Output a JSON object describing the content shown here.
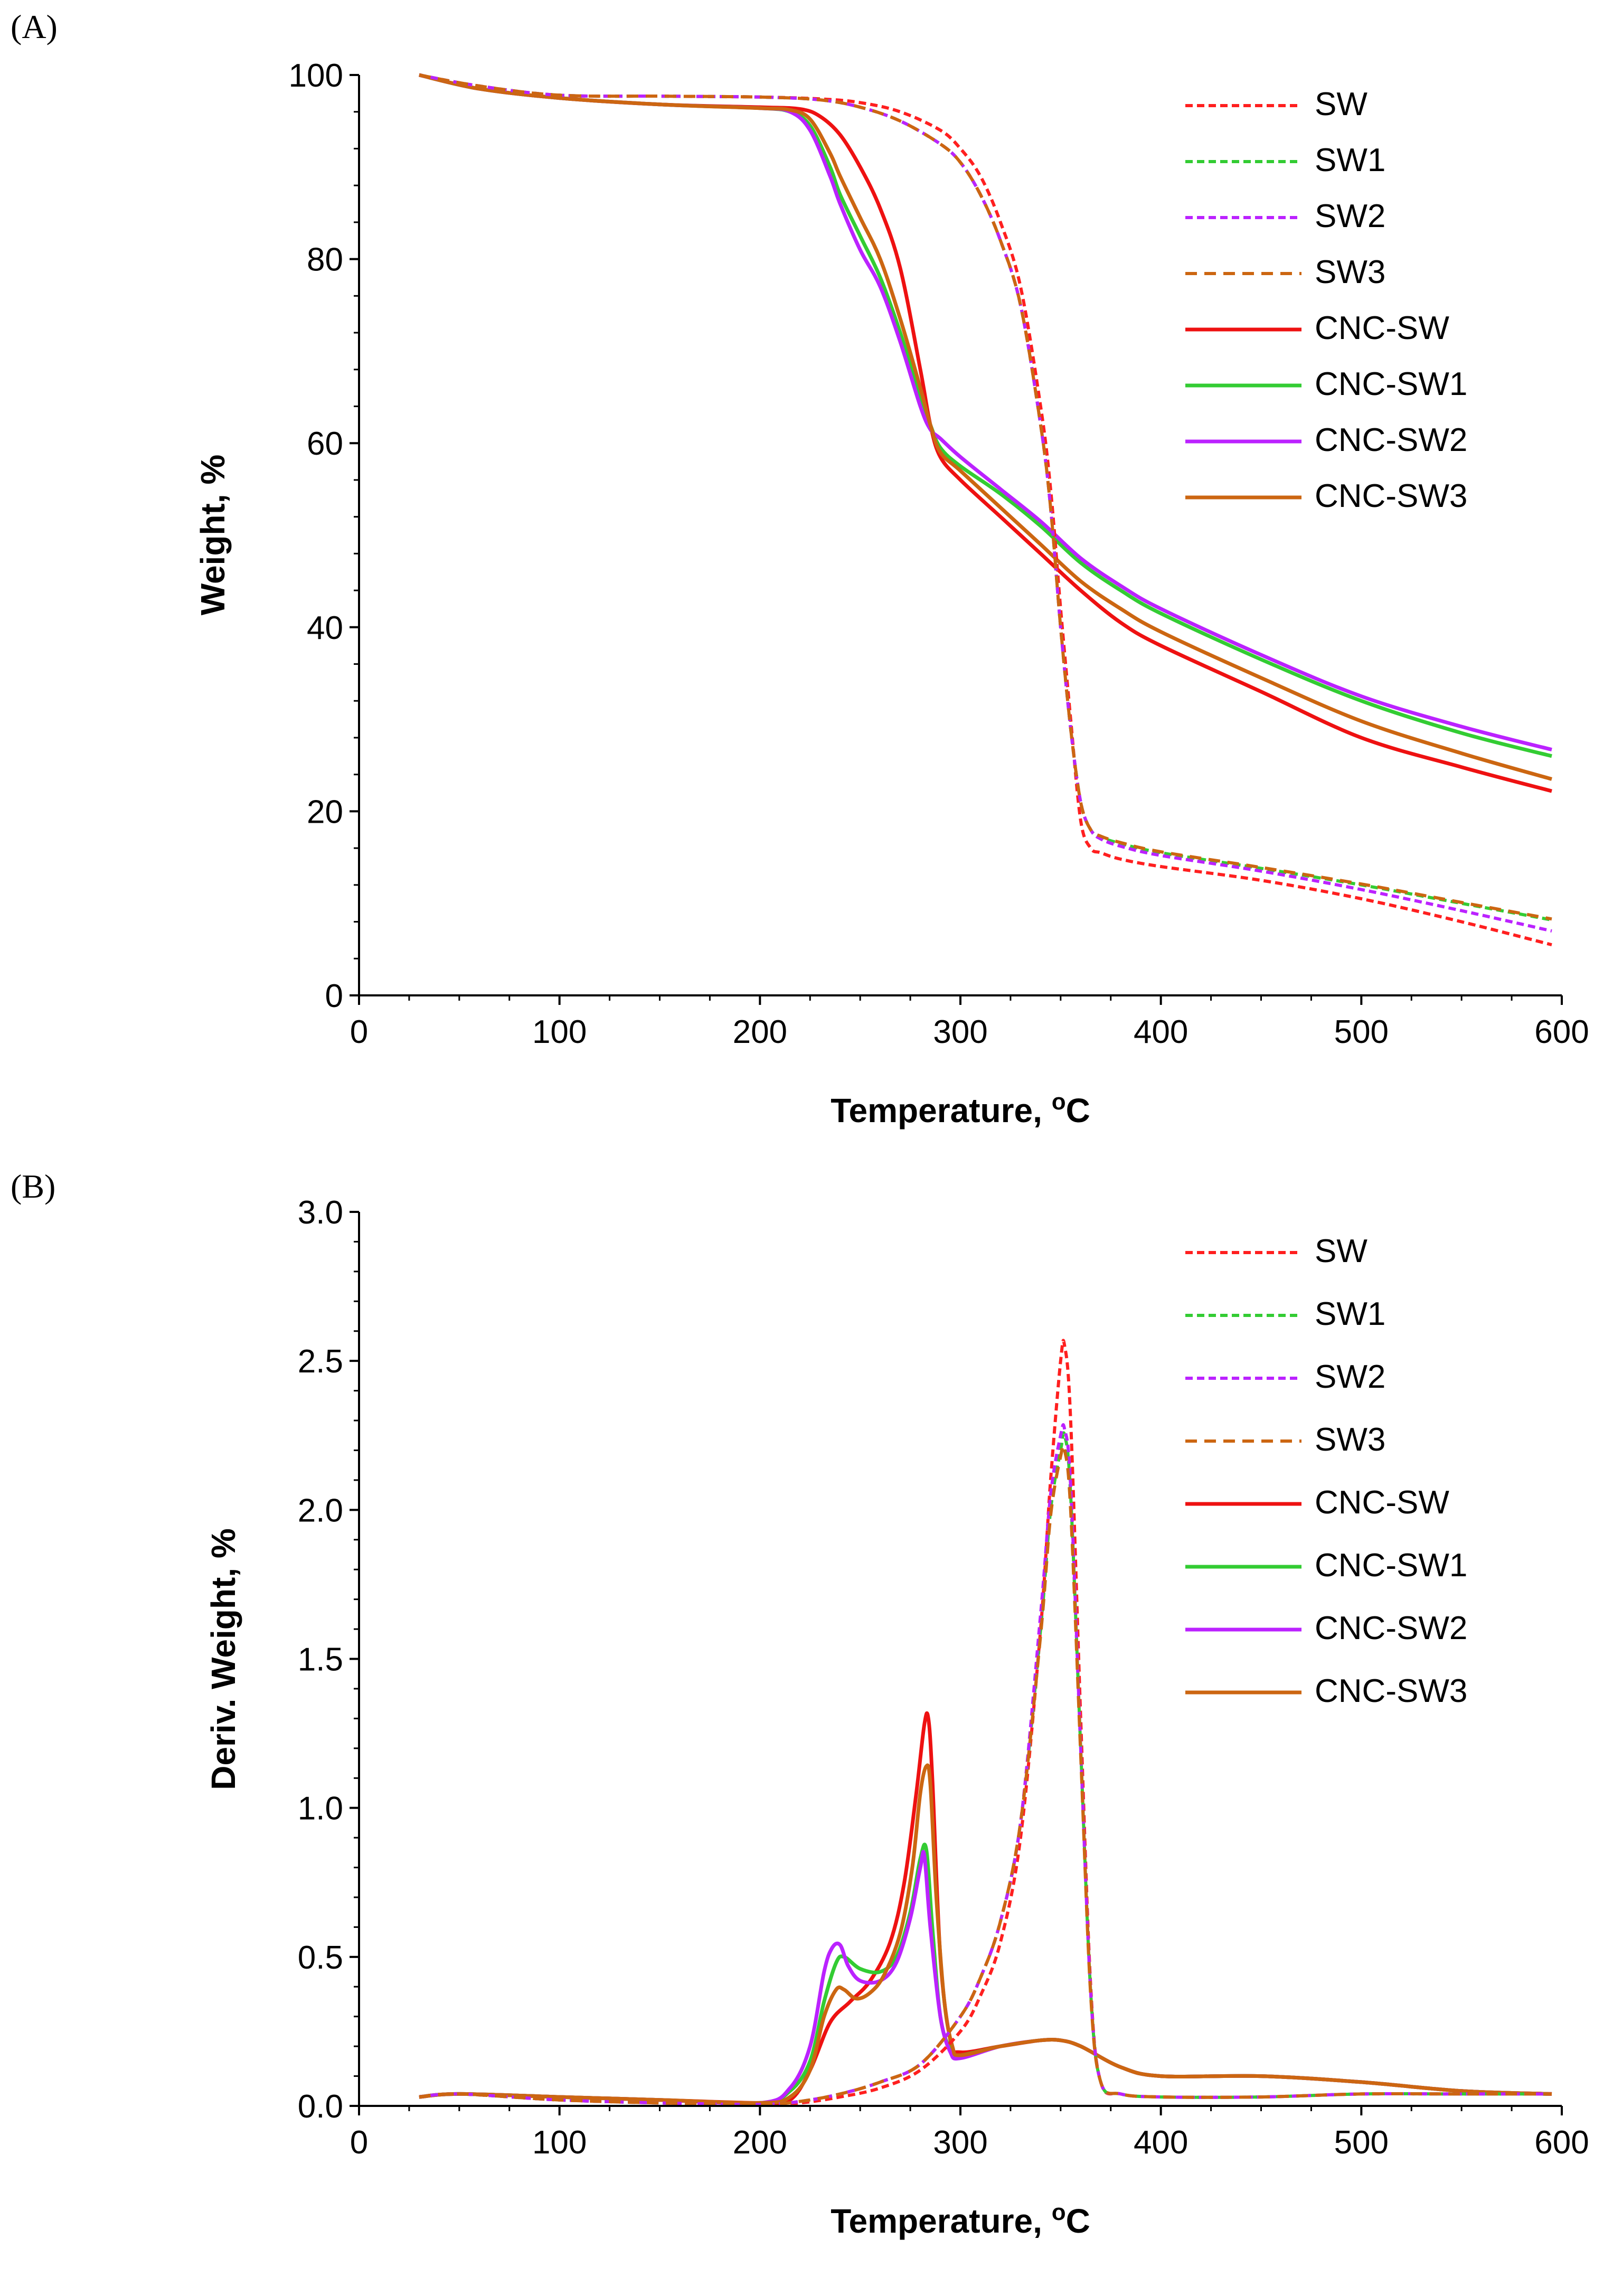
{
  "figure": {
    "panels": [
      "(A)",
      "(B)"
    ]
  },
  "legend_colors": {
    "SW": "#ff1f1f",
    "SW1": "#33cc33",
    "SW2": "#bb22ff",
    "SW3": "#cc6611",
    "CNC-SW": "#ee1111",
    "CNC-SW1": "#33cc33",
    "CNC-SW2": "#bb22ff",
    "CNC-SW3": "#cc6611"
  },
  "chart_data": [
    {
      "panel": "(A)",
      "type": "line",
      "title": "",
      "xlabel": "Temperature, ",
      "xlabel_sup": "o",
      "xlabel_unit": "C",
      "ylabel": "Weight, %",
      "xlim": [
        0,
        600
      ],
      "ylim": [
        0,
        100
      ],
      "xticks": [
        0,
        100,
        200,
        300,
        400,
        500,
        600
      ],
      "yticks": [
        0,
        20,
        40,
        60,
        80,
        100
      ],
      "grid": false,
      "legend_position": "top-right",
      "series": [
        {
          "name": "SW",
          "style": "dashed",
          "color": "#ff1f1f",
          "x": [
            30,
            60,
            100,
            150,
            200,
            230,
            250,
            270,
            290,
            300,
            310,
            320,
            330,
            340,
            345,
            350,
            355,
            360,
            365,
            370,
            380,
            400,
            450,
            500,
            550,
            595
          ],
          "y": [
            100,
            98.8,
            97.8,
            97.7,
            97.6,
            97.4,
            97,
            96,
            94,
            92,
            89,
            84,
            77,
            64,
            55,
            42,
            30,
            19,
            16,
            15.5,
            14.8,
            14,
            12.5,
            10.5,
            8,
            5.5
          ]
        },
        {
          "name": "SW1",
          "style": "dashed",
          "color": "#33cc33",
          "x": [
            30,
            60,
            100,
            150,
            200,
            230,
            250,
            270,
            290,
            300,
            310,
            320,
            330,
            340,
            345,
            350,
            355,
            360,
            365,
            370,
            380,
            400,
            450,
            500,
            550,
            595
          ],
          "y": [
            100,
            98.8,
            97.8,
            97.7,
            97.6,
            97.3,
            96.5,
            95,
            92.5,
            90.5,
            87,
            82,
            75,
            62,
            53,
            40,
            29,
            21,
            18,
            17.2,
            16.5,
            15.5,
            13.8,
            12,
            10,
            8.2
          ]
        },
        {
          "name": "SW2",
          "style": "dashed",
          "color": "#bb22ff",
          "x": [
            30,
            60,
            100,
            150,
            200,
            230,
            250,
            270,
            290,
            300,
            310,
            320,
            330,
            340,
            345,
            350,
            355,
            360,
            365,
            370,
            380,
            400,
            450,
            500,
            550,
            595
          ],
          "y": [
            100,
            98.8,
            97.8,
            97.7,
            97.6,
            97.3,
            96.5,
            95,
            92.5,
            90.5,
            87,
            82,
            75,
            62,
            53,
            40,
            29,
            21,
            18,
            17,
            16.2,
            15.2,
            13.5,
            11.5,
            9.2,
            7
          ]
        },
        {
          "name": "SW3",
          "style": "dashed",
          "color": "#cc6611",
          "x": [
            30,
            60,
            100,
            150,
            200,
            230,
            250,
            270,
            290,
            300,
            310,
            320,
            330,
            340,
            345,
            350,
            355,
            360,
            365,
            370,
            380,
            400,
            450,
            500,
            550,
            595
          ],
          "y": [
            100,
            98.8,
            97.8,
            97.7,
            97.6,
            97.3,
            96.5,
            95,
            92.5,
            90.5,
            87,
            82,
            75,
            62,
            53,
            40,
            29,
            21,
            18,
            17.3,
            16.6,
            15.6,
            13.9,
            12.1,
            10.1,
            8.3
          ]
        },
        {
          "name": "CNC-SW",
          "style": "solid",
          "color": "#ee1111",
          "x": [
            30,
            60,
            100,
            150,
            200,
            220,
            230,
            240,
            250,
            260,
            270,
            280,
            285,
            290,
            300,
            320,
            340,
            360,
            380,
            400,
            450,
            500,
            550,
            595
          ],
          "y": [
            100,
            98.5,
            97.5,
            96.8,
            96.5,
            96.3,
            95.5,
            93.5,
            90,
            85.5,
            79,
            68,
            62,
            58.5,
            56,
            52,
            48,
            44,
            40.5,
            38,
            33,
            28,
            24.8,
            22.2
          ]
        },
        {
          "name": "CNC-SW1",
          "style": "solid",
          "color": "#33cc33",
          "x": [
            30,
            60,
            100,
            150,
            200,
            215,
            225,
            235,
            240,
            250,
            260,
            270,
            280,
            285,
            290,
            300,
            320,
            340,
            360,
            380,
            400,
            450,
            500,
            550,
            595
          ],
          "y": [
            100,
            98.5,
            97.5,
            96.8,
            96.4,
            96,
            94.5,
            90,
            87,
            82.5,
            78,
            72,
            65,
            62,
            59.5,
            57.5,
            54.5,
            51,
            47,
            44,
            41.5,
            36.5,
            32,
            28.5,
            26
          ]
        },
        {
          "name": "CNC-SW2",
          "style": "solid",
          "color": "#bb22ff",
          "x": [
            30,
            60,
            100,
            150,
            200,
            215,
            225,
            235,
            240,
            250,
            260,
            270,
            280,
            285,
            290,
            300,
            320,
            340,
            360,
            380,
            400,
            450,
            500,
            550,
            595
          ],
          "y": [
            100,
            98.5,
            97.5,
            96.8,
            96.4,
            96,
            94,
            89,
            86,
            81,
            77,
            71,
            64,
            61.5,
            60.5,
            58.5,
            55,
            51.5,
            47.5,
            44.5,
            42,
            37,
            32.5,
            29.2,
            26.7
          ]
        },
        {
          "name": "CNC-SW3",
          "style": "solid",
          "color": "#cc6611",
          "x": [
            30,
            60,
            100,
            150,
            200,
            215,
            225,
            235,
            240,
            250,
            260,
            270,
            280,
            285,
            290,
            300,
            320,
            340,
            360,
            380,
            400,
            450,
            500,
            550,
            595
          ],
          "y": [
            100,
            98.5,
            97.5,
            96.8,
            96.4,
            96.2,
            95.2,
            91.5,
            89,
            84.5,
            80,
            73.5,
            66,
            62,
            59,
            57,
            53,
            49,
            45,
            42,
            39.5,
            34.5,
            29.8,
            26.3,
            23.5
          ]
        }
      ]
    },
    {
      "panel": "(B)",
      "type": "line",
      "title": "",
      "xlabel": "Temperature, ",
      "xlabel_sup": "o",
      "xlabel_unit": "C",
      "ylabel": "Deriv. Weight, %",
      "xlim": [
        0,
        600
      ],
      "ylim": [
        0,
        3.0
      ],
      "xticks": [
        0,
        100,
        200,
        300,
        400,
        500,
        600
      ],
      "yticks": [
        "0.0",
        "0.5",
        "1.0",
        "1.5",
        "2.0",
        "2.5",
        "3.0"
      ],
      "grid": false,
      "legend_position": "top-right",
      "series": [
        {
          "name": "SW",
          "style": "dashed",
          "color": "#ff1f1f",
          "x": [
            30,
            50,
            100,
            150,
            200,
            220,
            240,
            260,
            280,
            300,
            310,
            320,
            330,
            340,
            345,
            350,
            352,
            355,
            360,
            365,
            370,
            380,
            400,
            450,
            500,
            550,
            595
          ],
          "y": [
            0.03,
            0.04,
            0.02,
            0.01,
            0.005,
            0.01,
            0.03,
            0.06,
            0.12,
            0.25,
            0.37,
            0.55,
            0.9,
            1.6,
            2.1,
            2.5,
            2.55,
            2.3,
            1.3,
            0.4,
            0.08,
            0.04,
            0.03,
            0.03,
            0.04,
            0.04,
            0.04
          ]
        },
        {
          "name": "SW1",
          "style": "dashed",
          "color": "#33cc33",
          "x": [
            30,
            50,
            100,
            150,
            200,
            220,
            240,
            260,
            280,
            300,
            310,
            320,
            330,
            340,
            345,
            350,
            352,
            355,
            360,
            365,
            370,
            380,
            400,
            450,
            500,
            550,
            595
          ],
          "y": [
            0.03,
            0.04,
            0.02,
            0.01,
            0.005,
            0.015,
            0.04,
            0.08,
            0.14,
            0.3,
            0.43,
            0.62,
            0.95,
            1.6,
            2.0,
            2.2,
            2.25,
            2.05,
            1.2,
            0.38,
            0.08,
            0.04,
            0.03,
            0.03,
            0.04,
            0.04,
            0.04
          ]
        },
        {
          "name": "SW2",
          "style": "dashed",
          "color": "#bb22ff",
          "x": [
            30,
            50,
            100,
            150,
            200,
            220,
            240,
            260,
            280,
            300,
            310,
            320,
            330,
            340,
            345,
            350,
            352,
            355,
            360,
            365,
            370,
            380,
            400,
            450,
            500,
            550,
            595
          ],
          "y": [
            0.03,
            0.04,
            0.02,
            0.01,
            0.005,
            0.015,
            0.04,
            0.08,
            0.14,
            0.3,
            0.43,
            0.62,
            0.95,
            1.65,
            2.05,
            2.25,
            2.27,
            2.08,
            1.2,
            0.38,
            0.08,
            0.04,
            0.03,
            0.03,
            0.04,
            0.04,
            0.04
          ]
        },
        {
          "name": "SW3",
          "style": "dashed",
          "color": "#cc6611",
          "x": [
            30,
            50,
            100,
            150,
            200,
            220,
            240,
            260,
            280,
            300,
            310,
            320,
            330,
            340,
            345,
            350,
            352,
            355,
            360,
            365,
            370,
            380,
            400,
            450,
            500,
            550,
            595
          ],
          "y": [
            0.03,
            0.04,
            0.02,
            0.01,
            0.005,
            0.015,
            0.04,
            0.08,
            0.14,
            0.3,
            0.43,
            0.62,
            0.95,
            1.58,
            1.98,
            2.18,
            2.2,
            2.0,
            1.18,
            0.37,
            0.08,
            0.04,
            0.03,
            0.03,
            0.04,
            0.04,
            0.04
          ]
        },
        {
          "name": "CNC-SW",
          "style": "solid",
          "color": "#ee1111",
          "x": [
            30,
            50,
            100,
            150,
            200,
            215,
            225,
            235,
            245,
            255,
            265,
            272,
            278,
            282,
            284,
            286,
            290,
            295,
            300,
            320,
            340,
            350,
            360,
            380,
            400,
            450,
            500,
            550,
            595
          ],
          "y": [
            0.03,
            0.04,
            0.03,
            0.02,
            0.01,
            0.02,
            0.12,
            0.28,
            0.35,
            0.42,
            0.55,
            0.75,
            1.05,
            1.28,
            1.3,
            1.1,
            0.5,
            0.22,
            0.18,
            0.2,
            0.22,
            0.22,
            0.2,
            0.13,
            0.1,
            0.1,
            0.08,
            0.05,
            0.04
          ]
        },
        {
          "name": "CNC-SW1",
          "style": "solid",
          "color": "#33cc33",
          "x": [
            30,
            50,
            100,
            150,
            200,
            215,
            225,
            232,
            238,
            242,
            250,
            260,
            268,
            275,
            280,
            283,
            286,
            290,
            295,
            300,
            320,
            340,
            350,
            360,
            380,
            400,
            450,
            500,
            550,
            595
          ],
          "y": [
            0.03,
            0.04,
            0.03,
            0.02,
            0.01,
            0.05,
            0.15,
            0.35,
            0.48,
            0.5,
            0.46,
            0.45,
            0.5,
            0.65,
            0.83,
            0.86,
            0.6,
            0.3,
            0.19,
            0.17,
            0.2,
            0.22,
            0.22,
            0.2,
            0.13,
            0.1,
            0.1,
            0.08,
            0.05,
            0.04
          ]
        },
        {
          "name": "CNC-SW2",
          "style": "solid",
          "color": "#bb22ff",
          "x": [
            30,
            50,
            100,
            150,
            200,
            215,
            225,
            232,
            236,
            240,
            244,
            250,
            260,
            268,
            275,
            280,
            282,
            285,
            290,
            295,
            300,
            320,
            340,
            350,
            360,
            380,
            400,
            450,
            500,
            550,
            595
          ],
          "y": [
            0.03,
            0.04,
            0.03,
            0.02,
            0.01,
            0.06,
            0.2,
            0.45,
            0.53,
            0.54,
            0.47,
            0.42,
            0.42,
            0.48,
            0.63,
            0.8,
            0.84,
            0.6,
            0.3,
            0.18,
            0.16,
            0.2,
            0.22,
            0.22,
            0.2,
            0.13,
            0.1,
            0.1,
            0.08,
            0.05,
            0.04
          ]
        },
        {
          "name": "CNC-SW3",
          "style": "solid",
          "color": "#cc6611",
          "x": [
            30,
            50,
            100,
            150,
            200,
            215,
            225,
            232,
            238,
            242,
            248,
            255,
            262,
            270,
            276,
            280,
            283,
            285,
            288,
            292,
            296,
            300,
            320,
            340,
            350,
            360,
            380,
            400,
            450,
            500,
            550,
            595
          ],
          "y": [
            0.03,
            0.04,
            0.03,
            0.02,
            0.01,
            0.03,
            0.12,
            0.3,
            0.39,
            0.39,
            0.36,
            0.38,
            0.44,
            0.58,
            0.8,
            1.05,
            1.14,
            1.08,
            0.7,
            0.35,
            0.2,
            0.17,
            0.2,
            0.22,
            0.22,
            0.2,
            0.13,
            0.1,
            0.1,
            0.08,
            0.05,
            0.04
          ]
        }
      ]
    }
  ]
}
